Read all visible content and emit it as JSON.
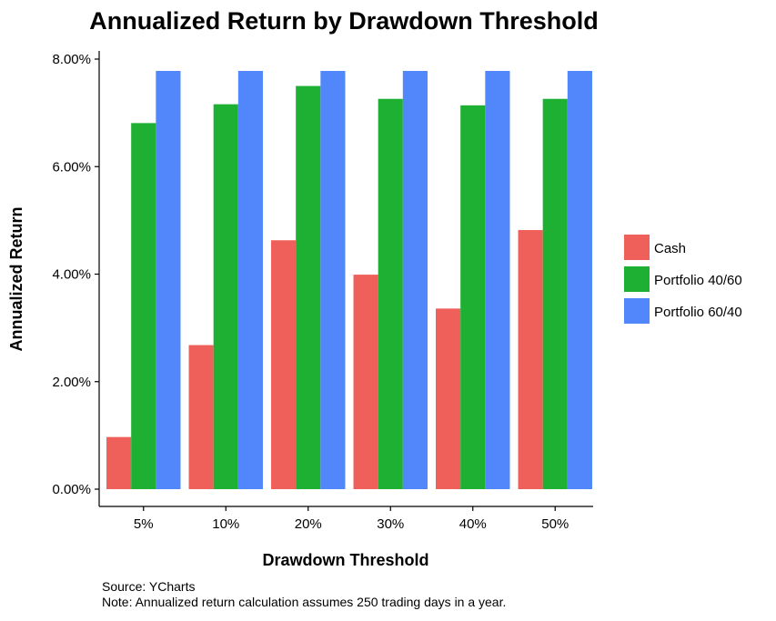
{
  "chart_data": {
    "type": "bar",
    "title": "Annualized Return by Drawdown Threshold",
    "xlabel": "Drawdown Threshold",
    "ylabel": "Annualized Return",
    "categories": [
      "5%",
      "10%",
      "20%",
      "30%",
      "40%",
      "50%"
    ],
    "series": [
      {
        "name": "Cash",
        "color": "#F0605A",
        "values": [
          0.97,
          2.68,
          4.63,
          3.99,
          3.36,
          4.82
        ]
      },
      {
        "name": "Portfolio 40/60",
        "color": "#1DB032",
        "values": [
          6.81,
          7.16,
          7.5,
          7.26,
          7.14,
          7.26
        ]
      },
      {
        "name": "Portfolio 60/40",
        "color": "#5187FB",
        "values": [
          7.78,
          7.78,
          7.78,
          7.78,
          7.78,
          7.78
        ]
      }
    ],
    "ylim": [
      0,
      8
    ],
    "yticks": [
      0,
      2,
      4,
      6,
      8
    ],
    "ytick_labels": [
      "0.00%",
      "2.00%",
      "4.00%",
      "6.00%",
      "8.00%"
    ],
    "grid": false,
    "legend_position": "right"
  },
  "source_note": "Source: YCharts",
  "assumption_note": "Note: Annualized return calculation assumes 250 trading days in a year."
}
